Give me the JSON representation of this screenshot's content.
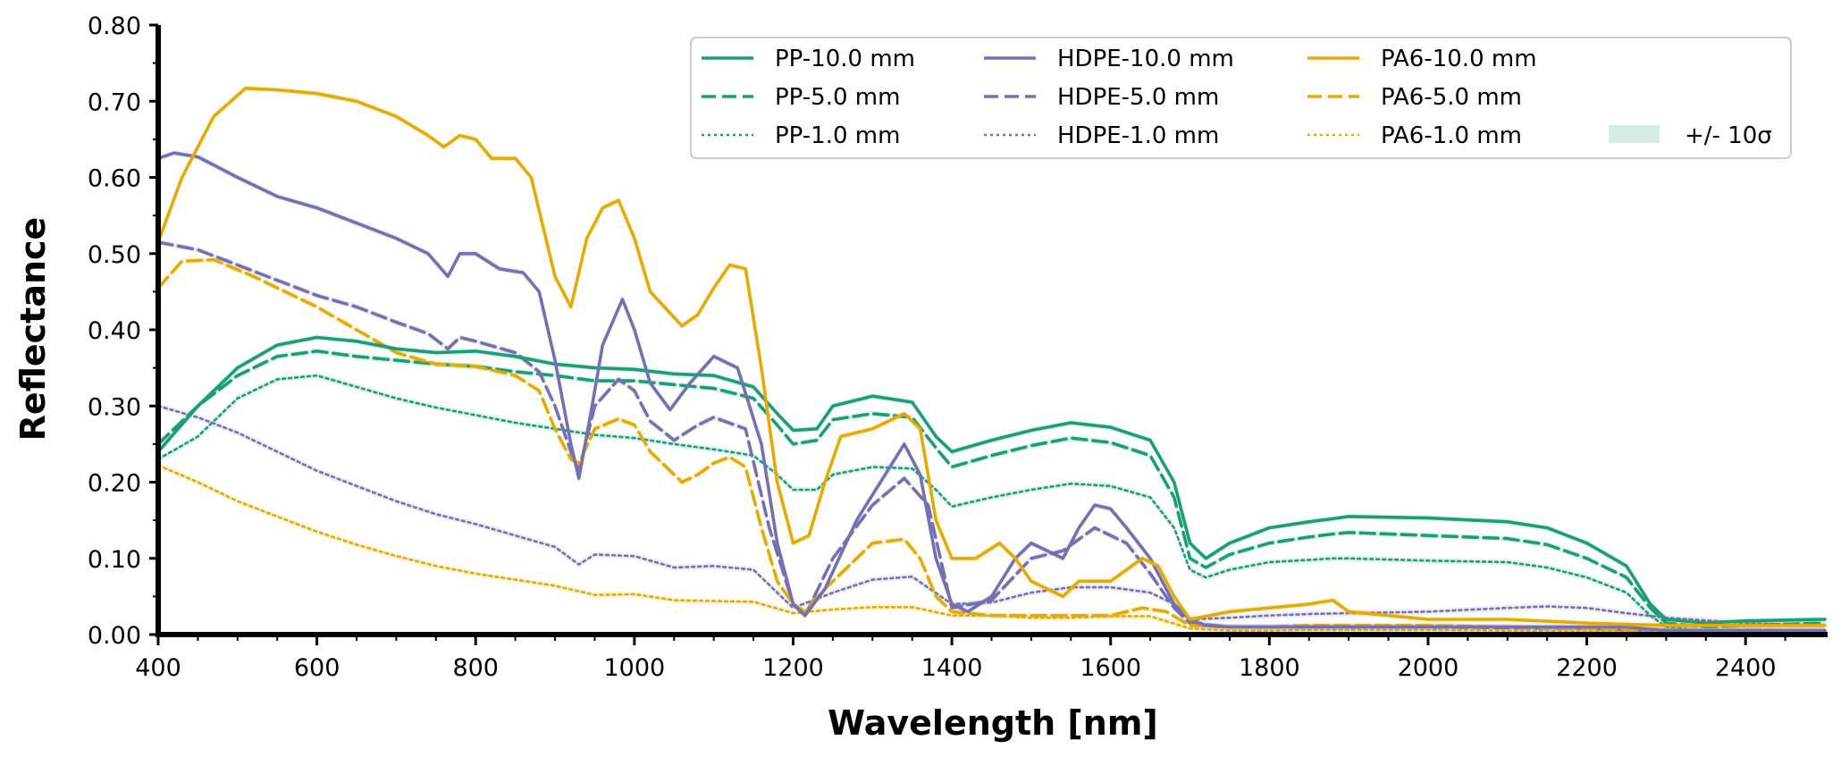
{
  "chart_data": {
    "type": "line",
    "title": "",
    "xlabel": "Wavelength [nm]",
    "ylabel": "Reflectance",
    "xlim": [
      400,
      2500
    ],
    "ylim": [
      0.0,
      0.8
    ],
    "x_ticks": [
      400,
      600,
      800,
      1000,
      1200,
      1400,
      1600,
      1800,
      2000,
      2200,
      2400
    ],
    "x_tick_labels": [
      "400",
      "600",
      "800",
      "1000",
      "1200",
      "1400",
      "1600",
      "1800",
      "2000",
      "2200",
      "2400"
    ],
    "y_ticks": [
      0.0,
      0.1,
      0.2,
      0.3,
      0.4,
      0.5,
      0.6,
      0.7,
      0.8
    ],
    "y_tick_labels": [
      "0.00",
      "0.10",
      "0.20",
      "0.30",
      "0.40",
      "0.50",
      "0.60",
      "0.70",
      "0.80"
    ],
    "grid": false,
    "legend_position": "top-right",
    "colors": {
      "PP": "#1b9e77",
      "HDPE": "#7570b3",
      "PA6": "#e6ab02",
      "band": "#d3ede4"
    },
    "band_label": "+/- 10σ",
    "series": [
      {
        "name": "PP-10.0 mm",
        "material": "PP",
        "style": "solid",
        "x": [
          400,
          450,
          500,
          550,
          600,
          650,
          700,
          750,
          800,
          850,
          900,
          950,
          1000,
          1050,
          1100,
          1150,
          1180,
          1200,
          1230,
          1250,
          1300,
          1350,
          1380,
          1400,
          1450,
          1500,
          1550,
          1600,
          1650,
          1680,
          1700,
          1720,
          1750,
          1800,
          1850,
          1880,
          1900,
          2000,
          2100,
          2150,
          2200,
          2250,
          2280,
          2300,
          2350,
          2400,
          2500
        ],
        "y": [
          0.24,
          0.3,
          0.35,
          0.38,
          0.39,
          0.385,
          0.375,
          0.37,
          0.372,
          0.365,
          0.355,
          0.35,
          0.348,
          0.342,
          0.34,
          0.325,
          0.29,
          0.268,
          0.27,
          0.3,
          0.313,
          0.305,
          0.26,
          0.24,
          0.255,
          0.268,
          0.278,
          0.272,
          0.255,
          0.2,
          0.12,
          0.1,
          0.12,
          0.14,
          0.148,
          0.152,
          0.155,
          0.153,
          0.148,
          0.14,
          0.12,
          0.09,
          0.04,
          0.02,
          0.015,
          0.018,
          0.02
        ]
      },
      {
        "name": "PP-5.0 mm",
        "material": "PP",
        "style": "dashed",
        "x": [
          400,
          450,
          500,
          550,
          600,
          650,
          700,
          750,
          800,
          850,
          900,
          950,
          1000,
          1050,
          1100,
          1150,
          1180,
          1200,
          1230,
          1250,
          1300,
          1350,
          1380,
          1400,
          1450,
          1500,
          1550,
          1600,
          1650,
          1680,
          1700,
          1720,
          1750,
          1800,
          1850,
          1880,
          1900,
          2000,
          2100,
          2150,
          2200,
          2250,
          2280,
          2300,
          2350,
          2400,
          2500
        ],
        "y": [
          0.25,
          0.3,
          0.34,
          0.365,
          0.372,
          0.365,
          0.36,
          0.355,
          0.352,
          0.345,
          0.34,
          0.333,
          0.333,
          0.328,
          0.323,
          0.31,
          0.275,
          0.25,
          0.255,
          0.282,
          0.29,
          0.285,
          0.245,
          0.22,
          0.235,
          0.248,
          0.258,
          0.252,
          0.235,
          0.18,
          0.1,
          0.088,
          0.105,
          0.12,
          0.128,
          0.132,
          0.134,
          0.13,
          0.126,
          0.118,
          0.1,
          0.075,
          0.035,
          0.015,
          0.01,
          0.012,
          0.015
        ]
      },
      {
        "name": "PP-1.0 mm",
        "material": "PP",
        "style": "dotted",
        "x": [
          400,
          450,
          500,
          550,
          600,
          650,
          700,
          750,
          800,
          850,
          900,
          950,
          1000,
          1050,
          1100,
          1150,
          1180,
          1200,
          1230,
          1250,
          1300,
          1350,
          1380,
          1400,
          1450,
          1500,
          1550,
          1600,
          1650,
          1680,
          1700,
          1720,
          1750,
          1800,
          1850,
          1880,
          1900,
          2000,
          2100,
          2150,
          2200,
          2250,
          2280,
          2300,
          2350,
          2400,
          2500
        ],
        "y": [
          0.23,
          0.26,
          0.31,
          0.335,
          0.34,
          0.325,
          0.31,
          0.298,
          0.288,
          0.278,
          0.27,
          0.262,
          0.258,
          0.25,
          0.243,
          0.235,
          0.21,
          0.19,
          0.19,
          0.21,
          0.22,
          0.218,
          0.19,
          0.168,
          0.18,
          0.19,
          0.198,
          0.195,
          0.18,
          0.14,
          0.085,
          0.075,
          0.085,
          0.095,
          0.098,
          0.1,
          0.1,
          0.097,
          0.095,
          0.088,
          0.075,
          0.055,
          0.025,
          0.01,
          0.005,
          0.005,
          0.005
        ]
      },
      {
        "name": "HDPE-10.0 mm",
        "material": "HDPE",
        "style": "solid",
        "x": [
          400,
          420,
          450,
          500,
          550,
          600,
          650,
          700,
          740,
          765,
          780,
          800,
          830,
          860,
          880,
          900,
          920,
          930,
          945,
          960,
          985,
          1000,
          1020,
          1045,
          1070,
          1100,
          1130,
          1160,
          1180,
          1200,
          1215,
          1240,
          1280,
          1310,
          1340,
          1360,
          1380,
          1400,
          1420,
          1450,
          1480,
          1500,
          1520,
          1540,
          1560,
          1580,
          1600,
          1620,
          1650,
          1680,
          1700,
          1720,
          1750,
          1800,
          1850,
          1900,
          2000,
          2100,
          2200,
          2250,
          2300,
          2400,
          2500
        ],
        "y": [
          0.625,
          0.632,
          0.627,
          0.6,
          0.575,
          0.56,
          0.54,
          0.52,
          0.5,
          0.47,
          0.5,
          0.5,
          0.48,
          0.475,
          0.45,
          0.36,
          0.25,
          0.205,
          0.29,
          0.38,
          0.44,
          0.4,
          0.33,
          0.295,
          0.33,
          0.365,
          0.35,
          0.25,
          0.12,
          0.04,
          0.025,
          0.06,
          0.15,
          0.2,
          0.25,
          0.21,
          0.1,
          0.04,
          0.03,
          0.05,
          0.1,
          0.12,
          0.11,
          0.1,
          0.14,
          0.17,
          0.165,
          0.14,
          0.1,
          0.04,
          0.02,
          0.012,
          0.01,
          0.01,
          0.01,
          0.01,
          0.01,
          0.01,
          0.01,
          0.01,
          0.005,
          0.005,
          0.005
        ]
      },
      {
        "name": "HDPE-5.0 mm",
        "material": "HDPE",
        "style": "dashed",
        "x": [
          400,
          450,
          500,
          550,
          600,
          650,
          700,
          740,
          765,
          780,
          800,
          850,
          880,
          900,
          920,
          930,
          950,
          980,
          1000,
          1020,
          1050,
          1080,
          1100,
          1140,
          1170,
          1200,
          1215,
          1250,
          1300,
          1340,
          1370,
          1400,
          1450,
          1500,
          1540,
          1580,
          1620,
          1650,
          1680,
          1700,
          1750,
          1800,
          1900,
          2000,
          2200,
          2300,
          2500
        ],
        "y": [
          0.515,
          0.505,
          0.485,
          0.465,
          0.445,
          0.43,
          0.41,
          0.395,
          0.375,
          0.39,
          0.385,
          0.37,
          0.345,
          0.3,
          0.24,
          0.215,
          0.3,
          0.335,
          0.32,
          0.28,
          0.255,
          0.275,
          0.285,
          0.27,
          0.14,
          0.04,
          0.025,
          0.1,
          0.17,
          0.205,
          0.17,
          0.035,
          0.045,
          0.1,
          0.11,
          0.14,
          0.12,
          0.08,
          0.035,
          0.015,
          0.01,
          0.01,
          0.01,
          0.01,
          0.008,
          0.005,
          0.005
        ]
      },
      {
        "name": "HDPE-1.0 mm",
        "material": "HDPE",
        "style": "dotted",
        "x": [
          400,
          450,
          500,
          550,
          600,
          650,
          700,
          750,
          800,
          850,
          900,
          930,
          950,
          1000,
          1050,
          1100,
          1150,
          1200,
          1250,
          1300,
          1350,
          1400,
          1450,
          1500,
          1550,
          1600,
          1650,
          1680,
          1700,
          1750,
          1800,
          1850,
          1900,
          2000,
          2100,
          2150,
          2200,
          2250,
          2300,
          2400,
          2500
        ],
        "y": [
          0.3,
          0.285,
          0.265,
          0.24,
          0.215,
          0.195,
          0.175,
          0.158,
          0.145,
          0.13,
          0.115,
          0.092,
          0.105,
          0.103,
          0.088,
          0.09,
          0.085,
          0.035,
          0.055,
          0.072,
          0.076,
          0.04,
          0.042,
          0.055,
          0.062,
          0.062,
          0.055,
          0.04,
          0.02,
          0.022,
          0.025,
          0.027,
          0.028,
          0.03,
          0.035,
          0.037,
          0.035,
          0.028,
          0.022,
          0.015,
          0.012
        ]
      },
      {
        "name": "PA6-10.0 mm",
        "material": "PA6",
        "style": "solid",
        "x": [
          400,
          430,
          470,
          510,
          550,
          600,
          650,
          700,
          740,
          760,
          780,
          800,
          820,
          850,
          870,
          900,
          920,
          940,
          960,
          980,
          1000,
          1020,
          1060,
          1080,
          1100,
          1120,
          1140,
          1160,
          1180,
          1200,
          1220,
          1240,
          1260,
          1300,
          1340,
          1360,
          1380,
          1400,
          1430,
          1460,
          1480,
          1500,
          1520,
          1540,
          1560,
          1600,
          1640,
          1660,
          1680,
          1700,
          1750,
          1800,
          1850,
          1880,
          1900,
          2000,
          2100,
          2200,
          2300,
          2400,
          2500
        ],
        "y": [
          0.515,
          0.6,
          0.68,
          0.717,
          0.715,
          0.71,
          0.7,
          0.68,
          0.655,
          0.64,
          0.655,
          0.65,
          0.625,
          0.625,
          0.6,
          0.47,
          0.43,
          0.52,
          0.56,
          0.57,
          0.52,
          0.45,
          0.405,
          0.42,
          0.455,
          0.485,
          0.48,
          0.35,
          0.2,
          0.12,
          0.13,
          0.2,
          0.26,
          0.27,
          0.29,
          0.27,
          0.15,
          0.1,
          0.1,
          0.12,
          0.1,
          0.07,
          0.06,
          0.05,
          0.07,
          0.07,
          0.1,
          0.09,
          0.05,
          0.02,
          0.03,
          0.035,
          0.04,
          0.045,
          0.03,
          0.02,
          0.02,
          0.015,
          0.012,
          0.012,
          0.012
        ]
      },
      {
        "name": "PA6-5.0 mm",
        "material": "PA6",
        "style": "dashed",
        "x": [
          400,
          430,
          470,
          520,
          600,
          650,
          700,
          750,
          800,
          850,
          880,
          900,
          920,
          930,
          950,
          980,
          1000,
          1020,
          1060,
          1080,
          1100,
          1120,
          1140,
          1160,
          1180,
          1200,
          1215,
          1240,
          1280,
          1300,
          1340,
          1360,
          1380,
          1400,
          1450,
          1500,
          1550,
          1600,
          1640,
          1670,
          1700,
          1750,
          1800,
          1850,
          1900,
          2000,
          2100,
          2200,
          2300,
          2400,
          2500
        ],
        "y": [
          0.455,
          0.49,
          0.492,
          0.47,
          0.43,
          0.4,
          0.37,
          0.355,
          0.352,
          0.34,
          0.32,
          0.27,
          0.23,
          0.225,
          0.27,
          0.283,
          0.275,
          0.24,
          0.2,
          0.21,
          0.225,
          0.233,
          0.22,
          0.14,
          0.07,
          0.04,
          0.03,
          0.06,
          0.1,
          0.12,
          0.125,
          0.1,
          0.05,
          0.03,
          0.025,
          0.025,
          0.025,
          0.025,
          0.035,
          0.03,
          0.012,
          0.01,
          0.01,
          0.012,
          0.012,
          0.012,
          0.01,
          0.008,
          0.006,
          0.006,
          0.005
        ]
      },
      {
        "name": "PA6-1.0 mm",
        "material": "PA6",
        "style": "dotted",
        "x": [
          400,
          450,
          500,
          550,
          600,
          650,
          700,
          750,
          800,
          850,
          900,
          950,
          1000,
          1050,
          1100,
          1150,
          1200,
          1250,
          1300,
          1350,
          1400,
          1450,
          1500,
          1550,
          1600,
          1650,
          1700,
          1750,
          1800,
          1850,
          1900,
          2000,
          2100,
          2200,
          2300,
          2400,
          2500
        ],
        "y": [
          0.222,
          0.2,
          0.175,
          0.155,
          0.135,
          0.118,
          0.103,
          0.09,
          0.08,
          0.072,
          0.064,
          0.052,
          0.053,
          0.045,
          0.044,
          0.043,
          0.028,
          0.033,
          0.036,
          0.036,
          0.025,
          0.025,
          0.022,
          0.022,
          0.024,
          0.024,
          0.008,
          0.005,
          0.005,
          0.006,
          0.006,
          0.006,
          0.005,
          0.004,
          0.003,
          0.003,
          0.003
        ]
      }
    ]
  }
}
